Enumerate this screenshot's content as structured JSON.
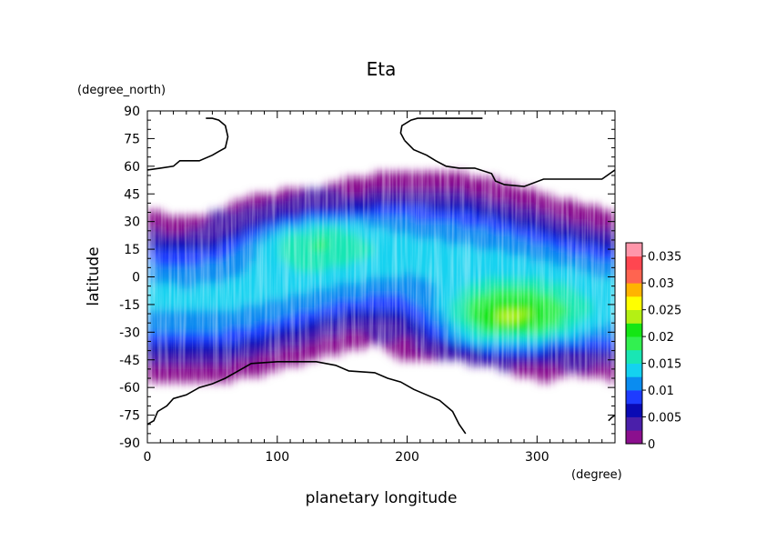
{
  "chart_data": {
    "type": "heatmap",
    "title": "Eta",
    "xlabel": "planetary longitude",
    "ylabel": "latitude",
    "xunit": "(degree)",
    "yunit": "(degree_north)",
    "xlim": [
      0,
      360
    ],
    "ylim": [
      -90,
      90
    ],
    "xticks": [
      0,
      100,
      200,
      300
    ],
    "yticks": [
      90,
      75,
      60,
      45,
      30,
      15,
      0,
      -15,
      -30,
      -45,
      -60,
      -75,
      -90
    ],
    "xtick_labels": [
      "0",
      "100",
      "200",
      "300"
    ],
    "ytick_labels": [
      "90",
      "75",
      "60",
      "45",
      "30",
      "15",
      "0",
      "-15",
      "-30",
      "-45",
      "-60",
      "-75",
      "-90"
    ],
    "colorbar": {
      "min": 0,
      "max": 0.0375,
      "levels": [
        0,
        0.0025,
        0.005,
        0.0075,
        0.01,
        0.0125,
        0.015,
        0.0175,
        0.02,
        0.0225,
        0.025,
        0.0275,
        0.03,
        0.0325,
        0.035,
        0.0375
      ],
      "colors": [
        "#ffffff",
        "#8b0f8e",
        "#4a1faa",
        "#0a0ab4",
        "#1e3cff",
        "#0a8cf0",
        "#14d2f0",
        "#19e6b4",
        "#32f050",
        "#14e614",
        "#b4f014",
        "#ffff00",
        "#ffb400",
        "#ff6450",
        "#ff4650",
        "#ff96aa",
        "#ffc8c8"
      ],
      "tick_values": [
        0,
        0.005,
        0.01,
        0.015,
        0.02,
        0.025,
        0.03,
        0.035
      ],
      "tick_labels": [
        "0",
        "0.005",
        "0.01",
        "0.015",
        "0.02",
        "0.025",
        "0.03",
        "0.035"
      ]
    },
    "field_features": [
      {
        "kind": "maximum",
        "lon": 272,
        "lat": -25,
        "value": 0.027
      },
      {
        "kind": "local_maximum",
        "lon": 122,
        "lat": 22,
        "value": 0.019
      },
      {
        "kind": "no_data_region",
        "area": "north of ~60N, lon 0-70 and lon 190-360 above the contour"
      },
      {
        "kind": "no_data_region",
        "area": "south of ~-50S, lon 60-240"
      }
    ],
    "contours": [
      {
        "lon": [
          0,
          10,
          20,
          25,
          30,
          40,
          50,
          55,
          60,
          62,
          60,
          55,
          50,
          45
        ],
        "lat": [
          58,
          59,
          60,
          63,
          63,
          63,
          66,
          68,
          70,
          76,
          82,
          85,
          86,
          86
        ]
      },
      {
        "lon": [
          198,
          195,
          196,
          203,
          208,
          215,
          225,
          240,
          252,
          258
        ],
        "lat": [
          74,
          78,
          82,
          85,
          86,
          86,
          86,
          86,
          86,
          86
        ]
      },
      {
        "lon": [
          198,
          205,
          215,
          222,
          230,
          240,
          252,
          265,
          268,
          275,
          290,
          305,
          330,
          350,
          360
        ],
        "lat": [
          74,
          69,
          66,
          63,
          60,
          59,
          59,
          56,
          52,
          50,
          49,
          53,
          53,
          53,
          58
        ]
      },
      {
        "lon": [
          0,
          5,
          8,
          15,
          20,
          30,
          40,
          50,
          60,
          70,
          80,
          100,
          130,
          145,
          155,
          175,
          185,
          195,
          205,
          215,
          225,
          235,
          240,
          245
        ],
        "lat": [
          -80,
          -78,
          -73,
          -70,
          -66,
          -64,
          -60,
          -58,
          -55,
          -51,
          -47,
          -46,
          -46,
          -48,
          -51,
          -52,
          -55,
          -57,
          -61,
          -64,
          -67,
          -73,
          -80,
          -85
        ]
      },
      {
        "lon": [
          355,
          358,
          360
        ],
        "lat": [
          -78,
          -76,
          -75
        ]
      }
    ]
  }
}
